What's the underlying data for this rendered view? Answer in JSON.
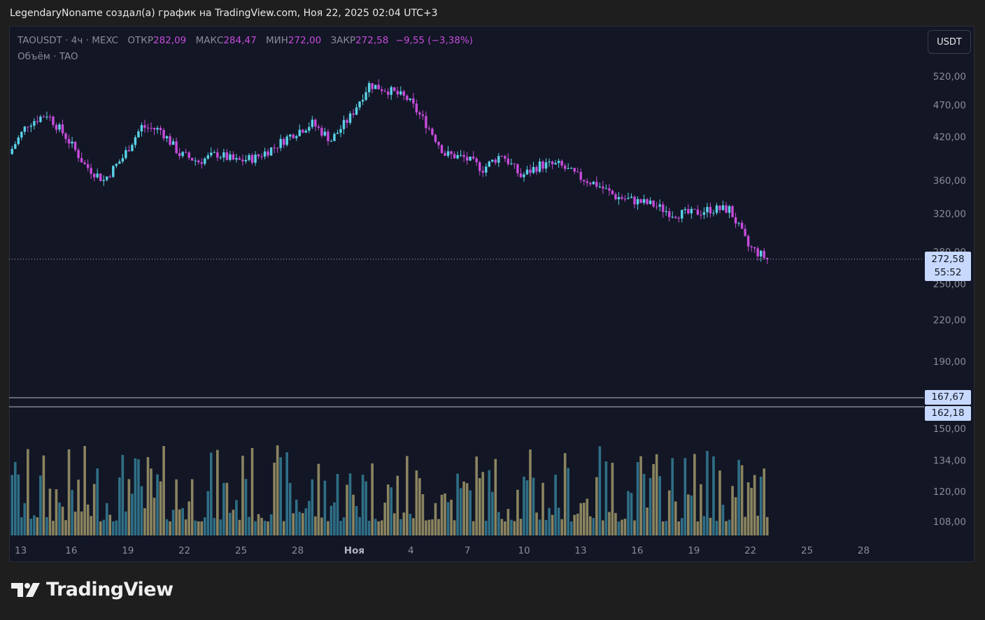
{
  "caption": "LegendaryNoname создал(а) график на TradingView.com, Ноя 22, 2025 02:04 UTC+3",
  "currency_button": "USDT",
  "legend": {
    "symbol": "TAOUSDT · 4ч · MEXC",
    "open_label": "ОТКР",
    "open": "282,09",
    "high_label": "МАКС",
    "high": "284,47",
    "low_label": "МИН",
    "low": "272,00",
    "close_label": "ЗАКР",
    "close": "272,58",
    "change": "−9,55 (−3,38%)",
    "volume_label": "Объём · TAO"
  },
  "price_tag": {
    "price": "272,58",
    "countdown": "55:52"
  },
  "levels": [
    {
      "label": "167,67",
      "value": 167.67
    },
    {
      "label": "162,18",
      "value": 162.18
    }
  ],
  "brand": {
    "name": "TradingView"
  },
  "colors": {
    "up": "#5ad1e6",
    "down": "#c64bd9",
    "vol_up": "#2f6f86",
    "vol_down": "#8a8460",
    "background": "#121625",
    "tag": "#c8d9ff"
  },
  "chart_data": {
    "type": "candlestick",
    "symbol": "TAOUSDT",
    "timeframe": "4ч",
    "exchange": "MEXC",
    "scale": "log",
    "price_axis_ticks": [
      "520,00",
      "470,00",
      "420,00",
      "360,00",
      "320,00",
      "280,00",
      "250,00",
      "220,00",
      "190,00",
      "150,00",
      "134,00",
      "120,00",
      "108,00"
    ],
    "price_axis_values": [
      520,
      470,
      420,
      360,
      320,
      280,
      250,
      220,
      190,
      150,
      134,
      120,
      108
    ],
    "time_axis_ticks": [
      "13",
      "16",
      "19",
      "22",
      "25",
      "28",
      "Ноя",
      "4",
      "7",
      "10",
      "13",
      "16",
      "19",
      "22",
      "25",
      "28"
    ],
    "current_price": 272.58,
    "close_path": [
      {
        "date": "Oct 13",
        "close": 395
      },
      {
        "date": "Oct 14",
        "close": 440
      },
      {
        "date": "Oct 15",
        "close": 455
      },
      {
        "date": "Oct 16",
        "close": 420
      },
      {
        "date": "Oct 17",
        "close": 380
      },
      {
        "date": "Oct 18",
        "close": 360
      },
      {
        "date": "Oct 19",
        "close": 390
      },
      {
        "date": "Oct 20",
        "close": 435
      },
      {
        "date": "Oct 21",
        "close": 430
      },
      {
        "date": "Oct 22",
        "close": 395
      },
      {
        "date": "Oct 23",
        "close": 385
      },
      {
        "date": "Oct 24",
        "close": 395
      },
      {
        "date": "Oct 25",
        "close": 385
      },
      {
        "date": "Oct 26",
        "close": 390
      },
      {
        "date": "Oct 27",
        "close": 405
      },
      {
        "date": "Oct 28",
        "close": 425
      },
      {
        "date": "Oct 29",
        "close": 440
      },
      {
        "date": "Oct 30",
        "close": 415
      },
      {
        "date": "Oct 31",
        "close": 450
      },
      {
        "date": "Nov 1",
        "close": 505
      },
      {
        "date": "Nov 2",
        "close": 495
      },
      {
        "date": "Nov 3",
        "close": 480
      },
      {
        "date": "Nov 4",
        "close": 440
      },
      {
        "date": "Nov 5",
        "close": 395
      },
      {
        "date": "Nov 6",
        "close": 390
      },
      {
        "date": "Nov 7",
        "close": 375
      },
      {
        "date": "Nov 8",
        "close": 395
      },
      {
        "date": "Nov 9",
        "close": 365
      },
      {
        "date": "Nov 10",
        "close": 380
      },
      {
        "date": "Nov 11",
        "close": 380
      },
      {
        "date": "Nov 12",
        "close": 365
      },
      {
        "date": "Nov 13",
        "close": 355
      },
      {
        "date": "Nov 14",
        "close": 340
      },
      {
        "date": "Nov 15",
        "close": 335
      },
      {
        "date": "Nov 16",
        "close": 330
      },
      {
        "date": "Nov 17",
        "close": 320
      },
      {
        "date": "Nov 18",
        "close": 320
      },
      {
        "date": "Nov 19",
        "close": 325
      },
      {
        "date": "Nov 20",
        "close": 325
      },
      {
        "date": "Nov 21",
        "close": 285
      },
      {
        "date": "Nov 22",
        "close": 272.58
      }
    ]
  }
}
